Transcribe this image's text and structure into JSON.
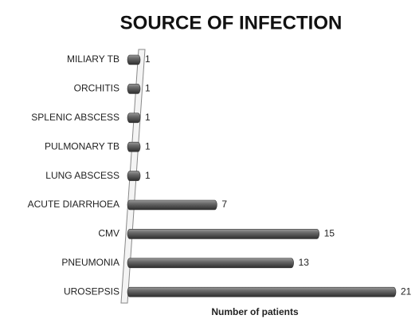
{
  "chart_data": {
    "type": "bar",
    "orientation": "horizontal",
    "title": "SOURCE OF INFECTION",
    "x_label": "Number of patients",
    "categories": [
      "MILIARY TB",
      "ORCHITIS",
      "SPLENIC ABSCESS",
      "PULMONARY TB",
      "LUNG ABSCESS",
      "ACUTE DIARRHOEA",
      "CMV",
      "PNEUMONIA",
      "UROSEPSIS"
    ],
    "values": [
      1,
      1,
      1,
      1,
      1,
      7,
      15,
      13,
      21
    ],
    "color": "#555555"
  }
}
